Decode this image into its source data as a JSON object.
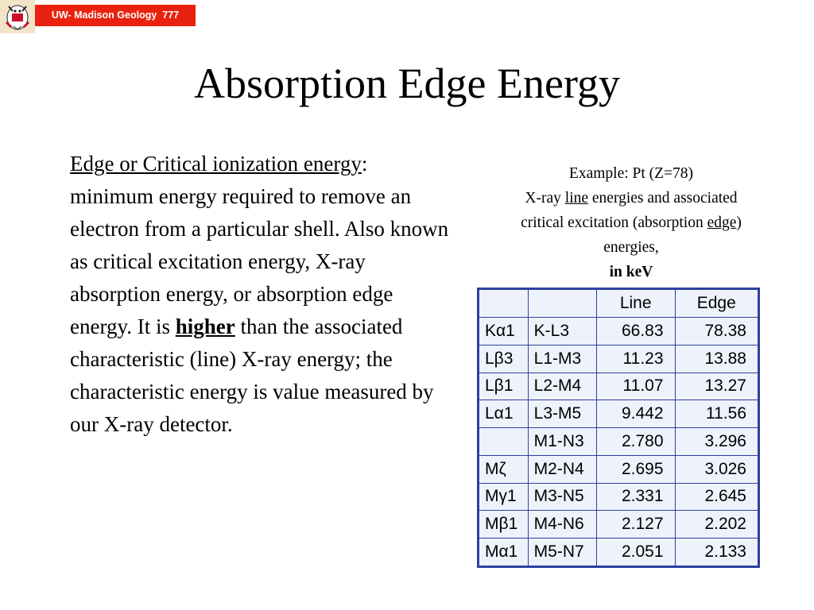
{
  "header": {
    "badge": "UW- Madison Geology  777"
  },
  "slide": {
    "title": "Absorption Edge Energy",
    "body": {
      "term": "Edge or Critical ionization energy",
      "part1": ": minimum energy required to remove an electron from a particular shell. Also known as critical excitation energy, X-ray absorption energy, or absorption edge energy. It is ",
      "emphasis": "higher",
      "part2": " than the associated characteristic (line) X-ray energy; the characteristic energy is value measured by our X-ray detector."
    },
    "caption": {
      "line1": "Example: Pt (Z=78)",
      "xray": "X-ray ",
      "line_word": "line",
      "after_line": " energies and associated critical excitation (absorption ",
      "edge_word": "edge",
      "after_edge": ") energies,",
      "units": "in keV"
    }
  },
  "table": {
    "headers": [
      "",
      "",
      "Line",
      "Edge"
    ],
    "rows": [
      {
        "sym": "Kα1",
        "transition": "K-L3",
        "line": "66.83",
        "edge": "78.38"
      },
      {
        "sym": "Lβ3",
        "transition": "L1-M3",
        "line": "11.23",
        "edge": "13.88"
      },
      {
        "sym": "Lβ1",
        "transition": "L2-M4",
        "line": "11.07",
        "edge": "13.27"
      },
      {
        "sym": "Lα1",
        "transition": "L3-M5",
        "line": "9.442",
        "edge": "11.56"
      },
      {
        "sym": "",
        "transition": "M1-N3",
        "line": "2.780",
        "edge": "3.296"
      },
      {
        "sym": "Mζ",
        "transition": "M2-N4",
        "line": "2.695",
        "edge": "3.026"
      },
      {
        "sym": "Mγ1",
        "transition": "M3-N5",
        "line": "2.331",
        "edge": "2.645"
      },
      {
        "sym": "Mβ1",
        "transition": "M4-N6",
        "line": "2.127",
        "edge": "2.202"
      },
      {
        "sym": "Mα1",
        "transition": "M5-N7",
        "line": "2.051",
        "edge": "2.133"
      }
    ]
  }
}
